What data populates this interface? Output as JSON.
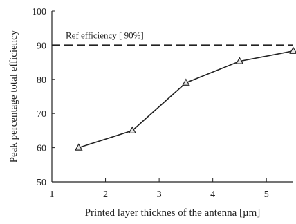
{
  "chart_data": {
    "type": "line",
    "title": "",
    "xlabel": "Printed layer thicknes of the antenna [µm]",
    "ylabel": "Peak percentage total efficiency",
    "xlim": [
      1,
      5.5
    ],
    "ylim": [
      50,
      100
    ],
    "x_ticks": [
      "1",
      "2",
      "3",
      "4",
      "5"
    ],
    "y_ticks": [
      "50",
      "60",
      "70",
      "80",
      "90",
      "100"
    ],
    "grid": false,
    "series": [
      {
        "x": [
          1.5,
          2.5,
          3.5,
          4.5,
          5.5
        ],
        "values": [
          60,
          65,
          79,
          85.3,
          88.3
        ],
        "marker": "triangle",
        "color": "#222222"
      }
    ],
    "reference_line": {
      "label": "Ref efficiency [ 90%]",
      "value": 90,
      "style": "dashed",
      "color": "#222222"
    }
  }
}
